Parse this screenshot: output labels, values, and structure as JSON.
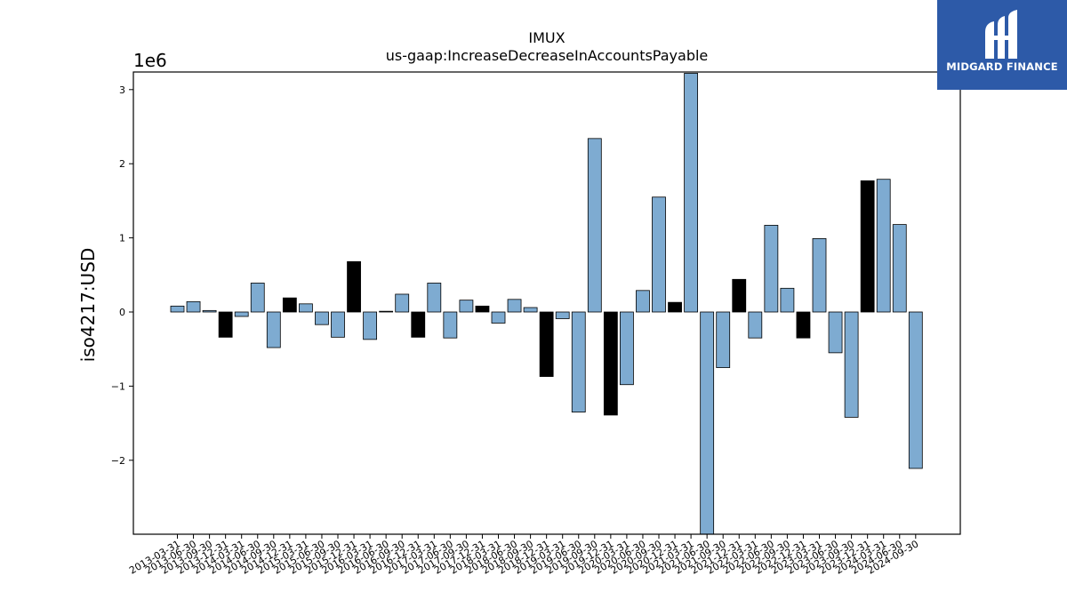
{
  "chart_data": {
    "type": "bar",
    "title": "IMUX",
    "subtitle": "us-gaap:IncreaseDecreaseInAccountsPayable",
    "ylabel": "iso4217:USD",
    "xlabel": "",
    "scale_label": "1e6",
    "ylim": [
      -3000000,
      3220000
    ],
    "yticks": [
      -2000000,
      -1000000,
      0,
      1000000,
      2000000,
      3000000
    ],
    "ytick_labels": [
      "−2",
      "−1",
      "0",
      "1",
      "2",
      "3"
    ],
    "grid": false,
    "categories": [
      "2013-03-31",
      "2013-06-30",
      "2013-09-30",
      "2013-12-31",
      "2014-03-31",
      "2014-06-30",
      "2014-09-30",
      "2014-12-31",
      "2015-03-31",
      "2015-06-30",
      "2015-09-30",
      "2015-12-31",
      "2016-03-31",
      "2016-06-30",
      "2016-09-30",
      "2016-12-31",
      "2017-03-31",
      "2017-06-30",
      "2017-09-30",
      "2017-12-31",
      "2018-03-31",
      "2018-06-30",
      "2018-09-30",
      "2018-12-31",
      "2019-03-31",
      "2019-06-30",
      "2019-09-30",
      "2019-12-31",
      "2020-03-31",
      "2020-06-30",
      "2020-09-30",
      "2020-12-31",
      "2021-03-31",
      "2021-06-30",
      "2021-09-30",
      "2021-12-31",
      "2022-03-31",
      "2022-06-30",
      "2022-09-30",
      "2022-12-31",
      "2023-03-31",
      "2023-06-30",
      "2023-09-30",
      "2023-12-31",
      "2024-03-31",
      "2024-06-30",
      "2024-09-30"
    ],
    "values": [
      80000,
      140000,
      20000,
      -340000,
      -60000,
      390000,
      -480000,
      190000,
      110000,
      -170000,
      -340000,
      680000,
      -370000,
      10000,
      240000,
      -340000,
      390000,
      -350000,
      160000,
      80000,
      -150000,
      170000,
      60000,
      -870000,
      -90000,
      -1350000,
      2340000,
      -1390000,
      -980000,
      290000,
      1550000,
      130000,
      3220000,
      -3000000,
      -750000,
      440000,
      -350000,
      1170000,
      320000,
      -350000,
      990000,
      -550000,
      -1420000,
      1770000,
      1790000,
      1180000,
      -2110000
    ],
    "bar_colors": [
      "#7eabd1",
      "#7eabd1",
      "#7eabd1",
      "#000000",
      "#7eabd1",
      "#7eabd1",
      "#7eabd1",
      "#000000",
      "#7eabd1",
      "#7eabd1",
      "#7eabd1",
      "#000000",
      "#7eabd1",
      "#7eabd1",
      "#7eabd1",
      "#000000",
      "#7eabd1",
      "#7eabd1",
      "#7eabd1",
      "#000000",
      "#7eabd1",
      "#7eabd1",
      "#7eabd1",
      "#000000",
      "#7eabd1",
      "#7eabd1",
      "#7eabd1",
      "#000000",
      "#7eabd1",
      "#7eabd1",
      "#7eabd1",
      "#000000",
      "#7eabd1",
      "#7eabd1",
      "#7eabd1",
      "#000000",
      "#7eabd1",
      "#7eabd1",
      "#7eabd1",
      "#000000",
      "#7eabd1",
      "#7eabd1",
      "#7eabd1",
      "#000000",
      "#7eabd1",
      "#7eabd1",
      "#7eabd1"
    ]
  },
  "brand": {
    "name": "MIDGARD FINANCE",
    "logo_icon": "midgard-logo-icon",
    "background": "#2d5aa8",
    "foreground": "#ffffff"
  }
}
